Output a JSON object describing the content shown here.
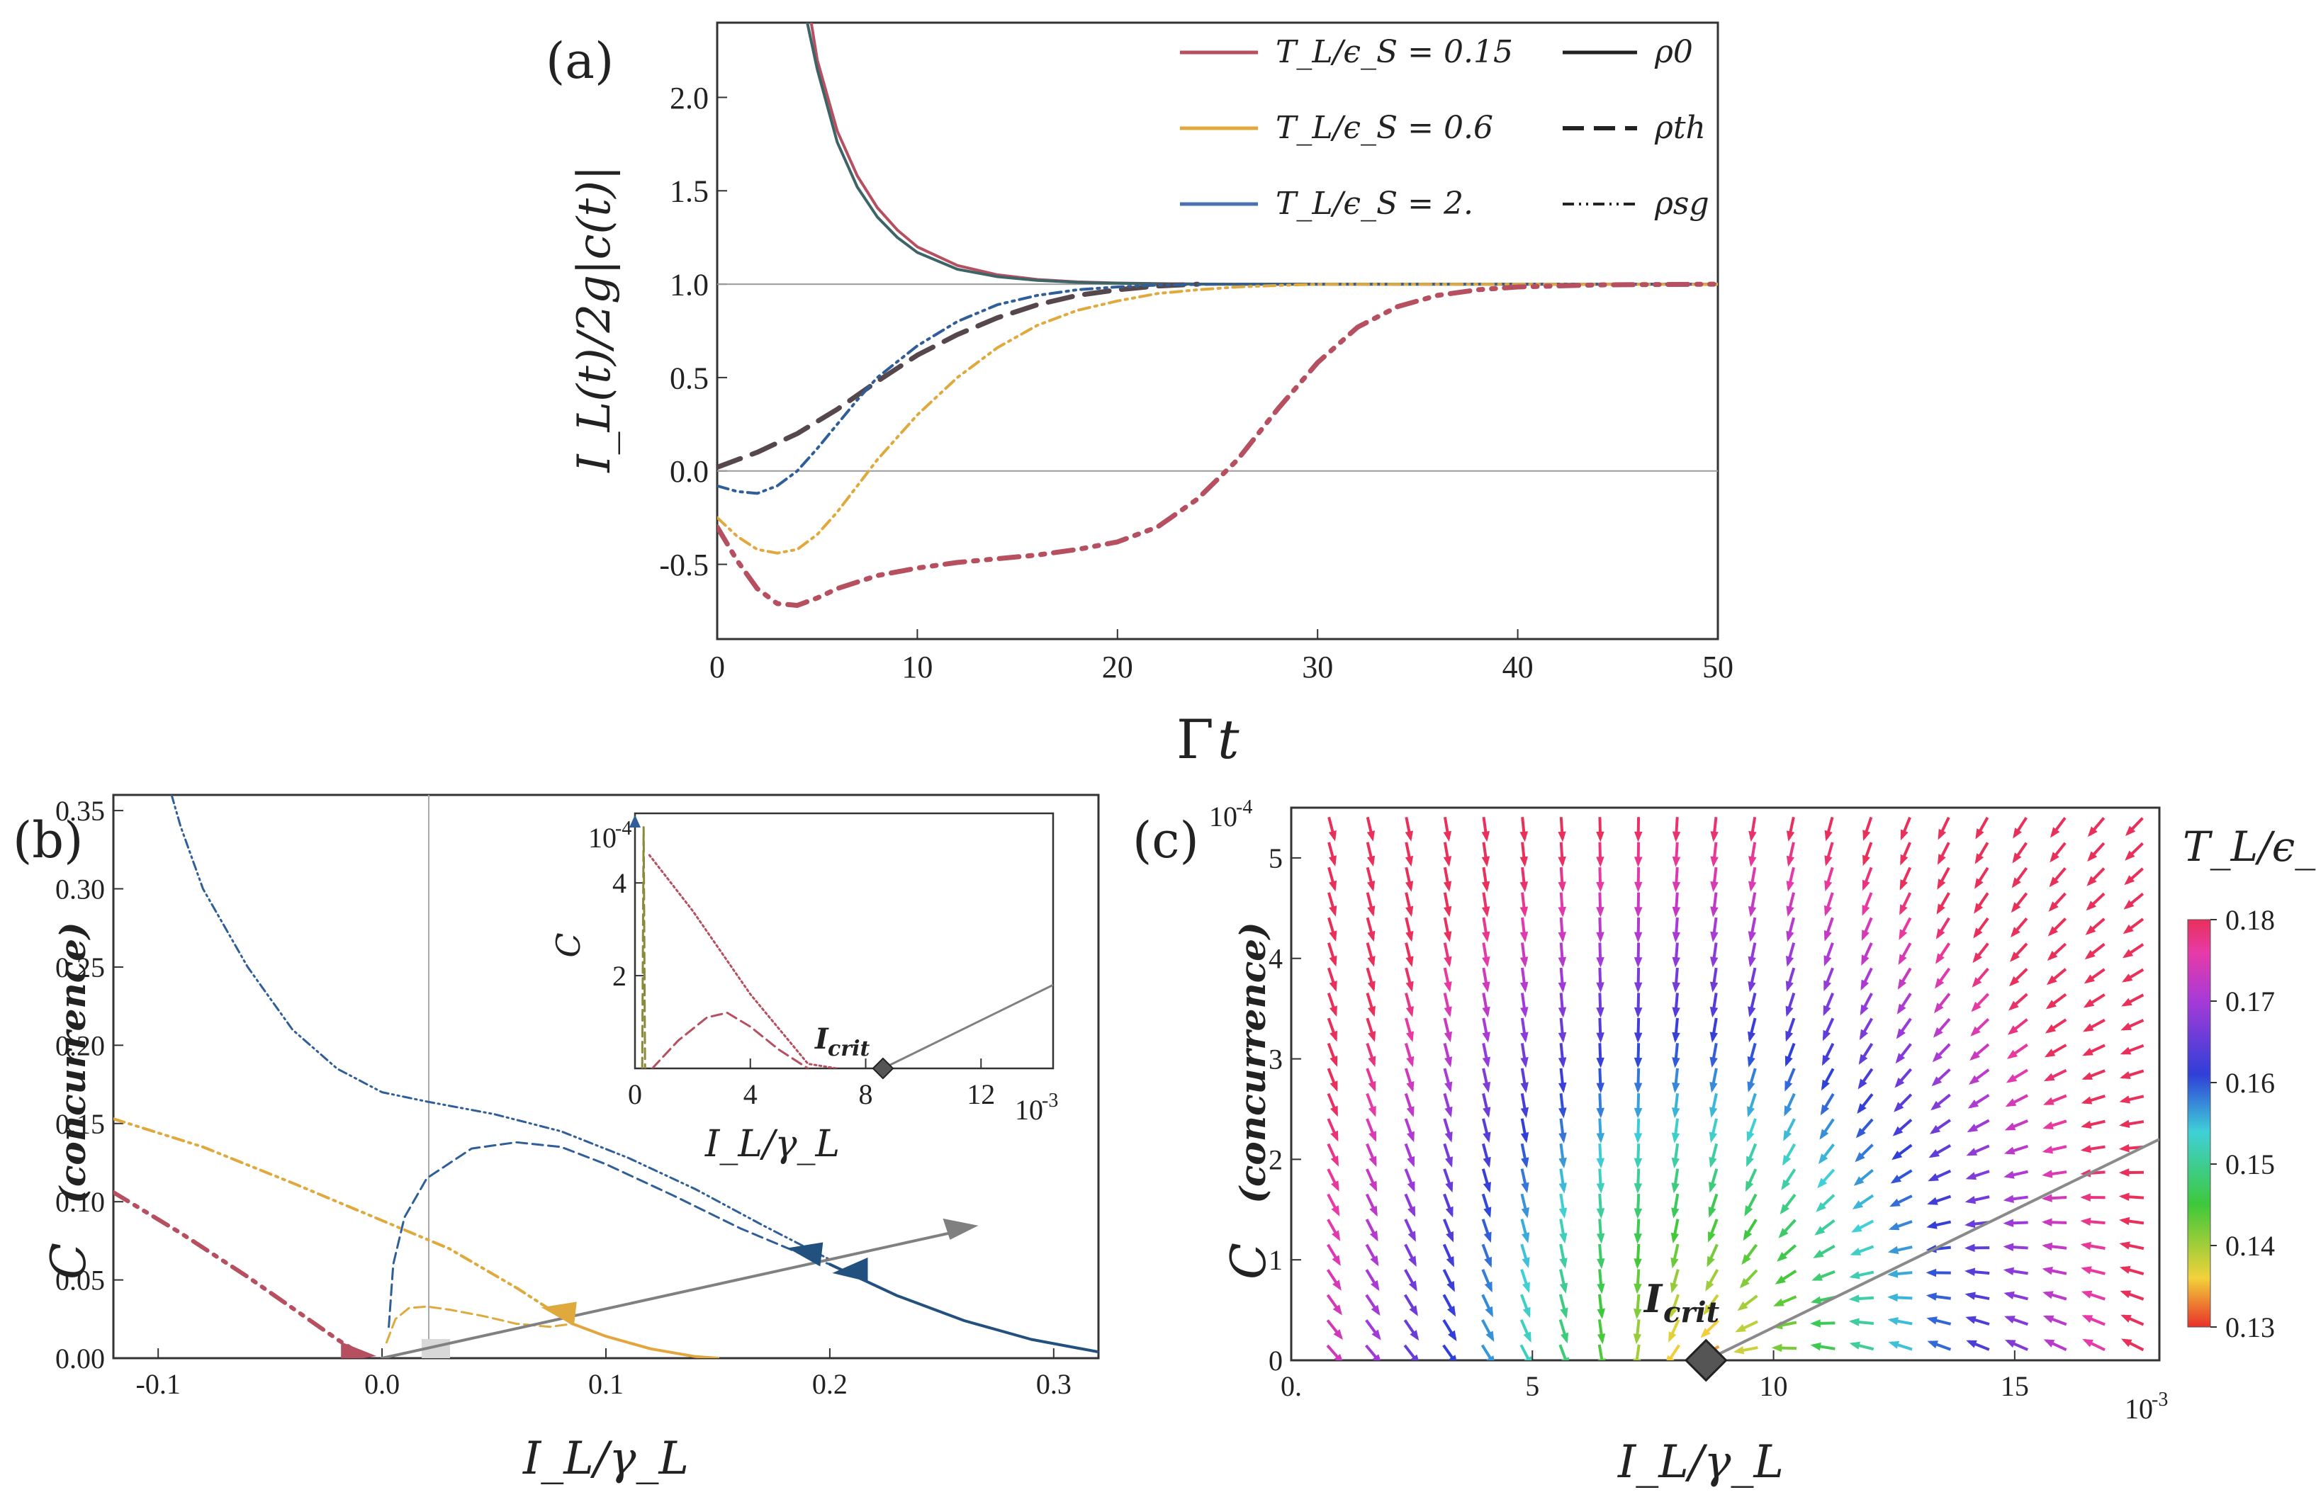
{
  "chart_data": [
    {
      "panel": "(a)",
      "type": "line",
      "xlabel": "Γt",
      "ylabel": "I_L(t)/2g|c(t)|",
      "xlim": [
        0,
        50
      ],
      "ylim": [
        -0.9,
        2.4
      ],
      "xticks": [
        "0",
        "10",
        "20",
        "30",
        "40",
        "50"
      ],
      "yticks": [
        "-0.5",
        "0.0",
        "0.5",
        "1.0",
        "1.5",
        "2.0"
      ],
      "reference_lines": [
        0.0,
        1.0
      ],
      "legend_temperatures": [
        {
          "label": "T_L/ϵ_S = 0.15",
          "color": "#b64f5f"
        },
        {
          "label": "T_L/ϵ_S = 0.6",
          "color": "#e0a93e"
        },
        {
          "label": "T_L/ϵ_S = 2.",
          "color": "#4a72b0"
        }
      ],
      "legend_states": [
        {
          "label": "ρ_0",
          "style": "solid"
        },
        {
          "label": "ρ_th",
          "style": "dashed"
        },
        {
          "label": "ρ_sg",
          "style": "dashdotdot"
        }
      ],
      "series": [
        {
          "name": "ρ_0, T_L/ϵ_S=0.15",
          "color": "#b64f5f",
          "dash": "solid",
          "x": [
            4.7,
            5,
            6,
            7,
            8,
            9,
            10,
            12,
            14,
            16,
            18,
            20,
            22,
            25,
            30,
            40,
            50
          ],
          "y": [
            2.4,
            2.2,
            1.82,
            1.58,
            1.41,
            1.29,
            1.2,
            1.1,
            1.05,
            1.025,
            1.012,
            1.006,
            1.003,
            1.0,
            1.0,
            1.0,
            1.0
          ]
        },
        {
          "name": "ρ_0, T_L/ϵ_S=2.",
          "color": "#3d6466",
          "dash": "solid",
          "x": [
            4.5,
            5,
            6,
            7,
            8,
            9,
            10,
            12,
            14,
            16,
            18,
            20,
            22,
            25,
            30,
            40,
            50
          ],
          "y": [
            2.4,
            2.15,
            1.76,
            1.52,
            1.36,
            1.25,
            1.17,
            1.08,
            1.04,
            1.02,
            1.01,
            1.005,
            1.002,
            1.0,
            1.0,
            1.0,
            1.0
          ]
        },
        {
          "name": "ρ_th",
          "color": "#56474d",
          "dash": "dashed",
          "x": [
            0,
            2,
            4,
            6,
            8,
            10,
            12,
            14,
            16,
            18,
            20,
            22,
            24
          ],
          "y": [
            0.02,
            0.1,
            0.2,
            0.33,
            0.48,
            0.62,
            0.73,
            0.82,
            0.89,
            0.94,
            0.97,
            0.99,
            1.0
          ]
        },
        {
          "name": "ρ_sg, T_L/ϵ_S=2.",
          "color": "#2f5e98",
          "dash": "dashdotdot",
          "x": [
            0,
            1,
            2,
            3,
            4,
            5,
            6,
            7,
            8,
            10,
            12,
            14,
            16,
            18,
            20,
            22,
            25,
            30,
            50
          ],
          "y": [
            -0.08,
            -0.11,
            -0.12,
            -0.08,
            0.0,
            0.12,
            0.25,
            0.38,
            0.5,
            0.67,
            0.8,
            0.89,
            0.94,
            0.97,
            0.985,
            0.995,
            1.0,
            1.0,
            1.0
          ]
        },
        {
          "name": "ρ_sg, T_L/ϵ_S=0.6",
          "color": "#e0a93e",
          "dash": "dashdotdot",
          "x": [
            0,
            1,
            2,
            3,
            4,
            5,
            6,
            7,
            8,
            10,
            12,
            14,
            16,
            18,
            20,
            22,
            24,
            26,
            28,
            30,
            35,
            50
          ],
          "y": [
            -0.25,
            -0.35,
            -0.42,
            -0.44,
            -0.42,
            -0.34,
            -0.22,
            -0.08,
            0.06,
            0.3,
            0.5,
            0.66,
            0.78,
            0.86,
            0.91,
            0.95,
            0.97,
            0.985,
            0.993,
            1.0,
            1.0,
            1.0
          ]
        },
        {
          "name": "ρ_sg, T_L/ϵ_S=0.15",
          "color": "#b64f5f",
          "dash": "dashdotdot",
          "x": [
            0,
            1,
            2,
            3,
            4,
            5,
            6,
            8,
            10,
            12,
            14,
            16,
            18,
            20,
            22,
            24,
            26,
            28,
            30,
            32,
            34,
            36,
            38,
            40,
            44,
            50
          ],
          "y": [
            -0.3,
            -0.48,
            -0.63,
            -0.71,
            -0.72,
            -0.68,
            -0.63,
            -0.56,
            -0.52,
            -0.49,
            -0.47,
            -0.45,
            -0.42,
            -0.38,
            -0.3,
            -0.15,
            0.06,
            0.33,
            0.58,
            0.77,
            0.88,
            0.94,
            0.97,
            0.985,
            0.996,
            1.0
          ]
        }
      ]
    },
    {
      "panel": "(b)",
      "type": "line",
      "xlabel": "I_L/γ_L",
      "ylabel": "C (concurrence)",
      "xlim": [
        -0.12,
        0.32
      ],
      "ylim": [
        0,
        0.36
      ],
      "xticks": [
        "-0.1",
        "0.0",
        "0.1",
        "0.2",
        "0.3"
      ],
      "yticks": [
        "0.00",
        "0.05",
        "0.10",
        "0.15",
        "0.20",
        "0.25",
        "0.30",
        "0.35"
      ],
      "series": [
        {
          "name": "blue dash-dot",
          "color": "#2f5e98",
          "dash": "dashdotdot",
          "x": [
            -0.094,
            -0.09,
            -0.08,
            -0.06,
            -0.04,
            -0.02,
            0,
            0.02,
            0.05,
            0.08,
            0.11,
            0.14,
            0.17,
            0.2
          ],
          "y": [
            0.36,
            0.34,
            0.3,
            0.25,
            0.21,
            0.185,
            0.17,
            0.164,
            0.156,
            0.145,
            0.128,
            0.108,
            0.085,
            0.063
          ]
        },
        {
          "name": "blue dashed",
          "color": "#2f5e98",
          "dash": "dashed",
          "x": [
            0.003,
            0.005,
            0.01,
            0.02,
            0.04,
            0.06,
            0.08,
            0.1,
            0.13,
            0.16,
            0.19,
            0.2
          ],
          "y": [
            0.02,
            0.06,
            0.09,
            0.115,
            0.134,
            0.138,
            0.135,
            0.124,
            0.104,
            0.083,
            0.065,
            0.06
          ]
        },
        {
          "name": "blue solid",
          "color": "#23517f",
          "dash": "solid",
          "x": [
            0.2,
            0.23,
            0.26,
            0.29,
            0.32
          ],
          "y": [
            0.06,
            0.04,
            0.024,
            0.012,
            0.004
          ]
        },
        {
          "name": "yellow dash-dot",
          "color": "#e0a93e",
          "dash": "dashdotdot",
          "x": [
            -0.12,
            -0.08,
            -0.04,
            0,
            0.03,
            0.06,
            0.085
          ],
          "y": [
            0.153,
            0.135,
            0.112,
            0.088,
            0.07,
            0.045,
            0.022
          ]
        },
        {
          "name": "yellow dashed",
          "color": "#e0a93e",
          "dash": "dashed",
          "x": [
            0.002,
            0.006,
            0.012,
            0.02,
            0.03,
            0.045,
            0.06,
            0.075,
            0.085
          ],
          "y": [
            0.01,
            0.025,
            0.032,
            0.033,
            0.031,
            0.027,
            0.022,
            0.02,
            0.022
          ]
        },
        {
          "name": "yellow solid",
          "color": "#e3a53d",
          "dash": "solid",
          "x": [
            0.085,
            0.1,
            0.12,
            0.14,
            0.15
          ],
          "y": [
            0.022,
            0.014,
            0.006,
            0.001,
            0
          ]
        },
        {
          "name": "red dash-dot",
          "color": "#b64f5f",
          "dash": "dashdotdot",
          "x": [
            -0.12,
            -0.09,
            -0.06,
            -0.04,
            -0.02,
            -0.01
          ],
          "y": [
            0.106,
            0.08,
            0.052,
            0.032,
            0.012,
            0.003
          ]
        },
        {
          "name": "gray line",
          "color": "#808080",
          "dash": "solid",
          "x": [
            0.0,
            0.26
          ],
          "y": [
            0.0,
            0.082
          ]
        }
      ],
      "arrows": [
        {
          "x": 0.08,
          "y": 0.027,
          "color": "#e0a93e"
        },
        {
          "x": 0.19,
          "y": 0.065,
          "color": "#23517f"
        },
        {
          "x": 0.21,
          "y": 0.058,
          "color": "#23517f"
        },
        {
          "x": -0.012,
          "y": 0.005,
          "color": "#b64f5f"
        },
        {
          "x": 0.26,
          "y": 0.082,
          "color": "#808080"
        }
      ],
      "inset": {
        "ylabel": "C",
        "xlabel": "I_L/γ_L",
        "xscale": "10^-3",
        "yscale": "10^-4",
        "xlim": [
          0,
          14.5
        ],
        "ylim": [
          0,
          5.5
        ],
        "xticks": [
          "0",
          "4",
          "8",
          "12"
        ],
        "yticks": [
          "2",
          "4"
        ],
        "annotation": "I_crit",
        "critical_point": {
          "x": 8.6,
          "y": 0
        },
        "series": [
          {
            "name": "red dotted",
            "color": "#b64f5f",
            "dash": "dotted",
            "x": [
              0.5,
              2,
              4,
              6,
              7
            ],
            "y": [
              4.6,
              3.4,
              1.6,
              0.1,
              0
            ]
          },
          {
            "name": "red dashed",
            "color": "#b64f5f",
            "dash": "dashed",
            "x": [
              0.6,
              1.5,
              2.5,
              3.2,
              4,
              5,
              6
            ],
            "y": [
              0,
              0.6,
              1.1,
              1.2,
              0.9,
              0.4,
              0
            ]
          },
          {
            "name": "olive spike",
            "color": "#8a8a3a",
            "dash": "dashed",
            "x": [
              0.25,
              0.3,
              0.35
            ],
            "y": [
              0,
              5.2,
              0
            ]
          },
          {
            "name": "gray line",
            "color": "#808080",
            "dash": "solid",
            "x": [
              8.6,
              14.5
            ],
            "y": [
              0,
              1.8
            ]
          }
        ]
      }
    },
    {
      "panel": "(c)",
      "type": "vector_field",
      "xlabel": "I_L/γ_L",
      "ylabel": "C (concurrence)",
      "xscale": "10^-3",
      "yscale": "10^-4",
      "xlim": [
        0,
        18
      ],
      "ylim": [
        0,
        5.5
      ],
      "xticks": [
        "0.",
        "5",
        "10",
        "15"
      ],
      "yticks": [
        "0",
        "1",
        "2",
        "3",
        "4",
        "5"
      ],
      "annotation": "I_crit",
      "critical_point": {
        "x": 8.6,
        "y": 0
      },
      "gray_line": {
        "x": [
          8.6,
          18
        ],
        "y": [
          0,
          2.2
        ]
      },
      "colorbar": {
        "label": "T_L/ϵ_s",
        "ticks": [
          "0.13",
          "0.14",
          "0.15",
          "0.16",
          "0.17",
          "0.18"
        ],
        "min": 0.13,
        "max": 0.18
      }
    }
  ],
  "labels": {
    "panel_a": "(a)",
    "panel_b": "(b)",
    "panel_c": "(c)",
    "a_xlabel_main": "Γ",
    "a_xlabel_var": "t",
    "a_ylabel": "I_L(t)/2g|c(t)|",
    "b_ylabel_sym": "C",
    "b_ylabel_word": "(concurrence)",
    "b_xlabel": "I_L/γ_L",
    "inset_xscale": "10",
    "inset_xscale_exp": "-3",
    "inset_yscale": "10",
    "inset_yscale_exp": "-4",
    "inset_ylabel": "C",
    "inset_annot": "I",
    "inset_annot_sub": "crit",
    "c_annot": "I",
    "c_annot_sub": "crit",
    "c_xscale": "10",
    "c_xscale_exp": "-3",
    "c_yscale": "10",
    "c_yscale_exp": "-4",
    "leg_T1": "T_L/ϵ_S = 0.15",
    "leg_T2": "T_L/ϵ_S = 0.6",
    "leg_T3": "T_L/ϵ_S = 2.",
    "leg_rho0": "ρ0",
    "leg_rhoth": "ρth",
    "leg_rhosg": "ρsg",
    "cbar_label": "T_L/ϵ_s"
  }
}
